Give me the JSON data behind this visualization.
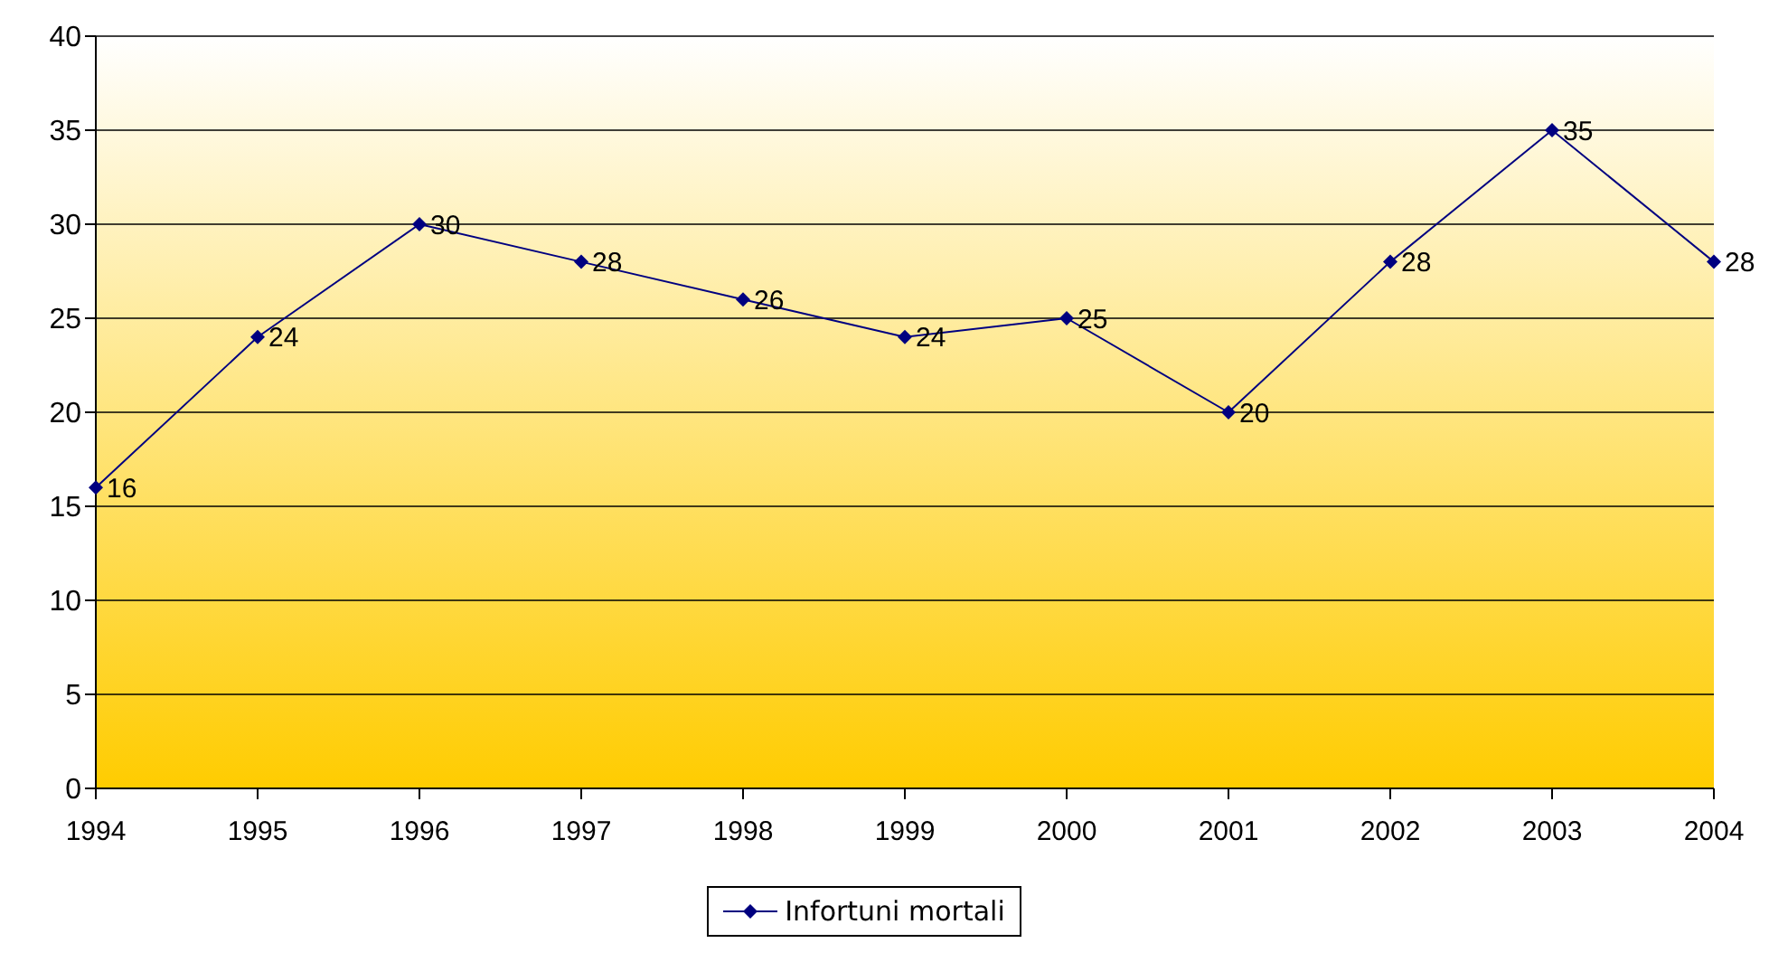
{
  "chart_data": {
    "type": "line",
    "categories": [
      "1994",
      "1995",
      "1996",
      "1997",
      "1998",
      "1999",
      "2000",
      "2001",
      "2002",
      "2003",
      "2004"
    ],
    "series": [
      {
        "name": "Infortuni mortali",
        "color": "#000080",
        "values": [
          16,
          24,
          30,
          28,
          26,
          24,
          25,
          20,
          28,
          35,
          28
        ]
      }
    ],
    "ylim": [
      0,
      40
    ],
    "yticks": [
      0,
      5,
      10,
      15,
      20,
      25,
      30,
      35,
      40
    ],
    "grid": "y",
    "legend": "bottom",
    "marker": "diamond",
    "line_style": "solid",
    "data_labels": true
  }
}
